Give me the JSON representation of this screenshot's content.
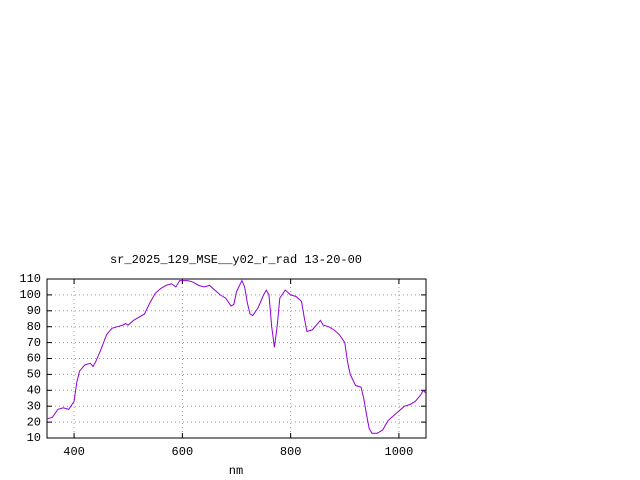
{
  "chart_data": {
    "type": "line",
    "title": "sr_2025_129_MSE__y02_r_rad 13-20-00",
    "x_label": "nm",
    "x": [
      350,
      360,
      370,
      380,
      390,
      400,
      405,
      410,
      420,
      430,
      435,
      440,
      450,
      460,
      470,
      480,
      490,
      495,
      500,
      510,
      520,
      530,
      540,
      550,
      560,
      570,
      580,
      588,
      595,
      600,
      610,
      620,
      630,
      640,
      650,
      660,
      670,
      680,
      690,
      695,
      700,
      710,
      715,
      720,
      725,
      730,
      740,
      750,
      755,
      760,
      765,
      770,
      775,
      780,
      790,
      800,
      810,
      820,
      825,
      830,
      840,
      850,
      855,
      860,
      870,
      880,
      890,
      900,
      905,
      910,
      920,
      930,
      935,
      940,
      945,
      950,
      960,
      970,
      975,
      980,
      990,
      1000,
      1010,
      1020,
      1030,
      1040,
      1045,
      1050
    ],
    "values": [
      22,
      23,
      28,
      29,
      28,
      33,
      45,
      52,
      56,
      57,
      55,
      58,
      66,
      75,
      79,
      80,
      81,
      82,
      81,
      84,
      86,
      88,
      95,
      101,
      104,
      106,
      107,
      105,
      109,
      109,
      109,
      108,
      106,
      105,
      106,
      103,
      100,
      98,
      93,
      94,
      102,
      109,
      105,
      95,
      88,
      87,
      92,
      100,
      103,
      100,
      80,
      67,
      80,
      98,
      103,
      100,
      99,
      96,
      86,
      77,
      78,
      82,
      84,
      81,
      80,
      78,
      75,
      70,
      58,
      50,
      43,
      42,
      35,
      25,
      16,
      13,
      13,
      15,
      18,
      21,
      24,
      27,
      30,
      31,
      33,
      37,
      40,
      38
    ],
    "color": "#9400d3",
    "xlim": [
      350,
      1050
    ],
    "xticks": [
      400,
      600,
      800,
      1000
    ],
    "ylim": [
      10,
      110
    ],
    "yticks": [
      10,
      20,
      30,
      40,
      50,
      60,
      70,
      80,
      90,
      100,
      110
    ],
    "grid": true
  }
}
